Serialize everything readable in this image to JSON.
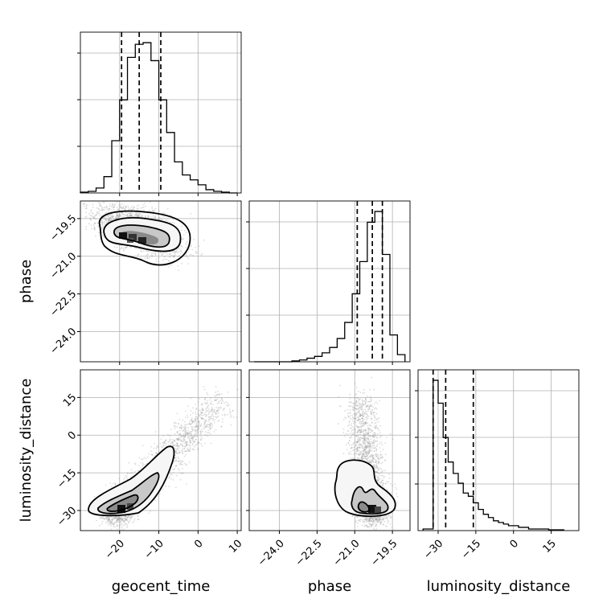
{
  "chart_data": {
    "type": "corner",
    "parameters": [
      "geocent_time",
      "phase",
      "luminosity_distance"
    ],
    "ranges": {
      "geocent_time": [
        -30,
        11
      ],
      "phase": [
        -25.2,
        -18.8
      ],
      "luminosity_distance": [
        -38,
        26
      ]
    },
    "ticks": {
      "geocent_time": [
        -20,
        -10,
        0,
        10
      ],
      "phase": [
        -24.0,
        -22.5,
        -21.0,
        -19.5
      ],
      "luminosity_distance": [
        -30,
        -15,
        0,
        15
      ]
    },
    "tick_labels": {
      "geocent_time": [
        "−20",
        "−10",
        "0",
        "10"
      ],
      "phase": [
        "−24.0",
        "−22.5",
        "−21.0",
        "−19.5"
      ],
      "luminosity_distance": [
        "−30",
        "−15",
        "0",
        "15"
      ]
    },
    "axis_labels": {
      "geocent_time": "geocent_time",
      "phase": "phase",
      "luminosity_distance": "luminosity_distance"
    },
    "quantiles": {
      "geocent_time": [
        -19.5,
        -15.0,
        -9.5
      ],
      "phase": [
        -20.9,
        -20.3,
        -19.9
      ],
      "luminosity_distance": [
        -32.0,
        -27.0,
        -16.0
      ]
    },
    "histograms": {
      "geocent_time": {
        "edges": [
          -30,
          -28,
          -26,
          -24,
          -22,
          -20,
          -18,
          -16,
          -14,
          -12,
          -10,
          -8,
          -6,
          -4,
          -2,
          0,
          2,
          4,
          6,
          8,
          10
        ],
        "counts": [
          0.5,
          1,
          3,
          10,
          32,
          57,
          83,
          91,
          92,
          81,
          57,
          37,
          19,
          11,
          8,
          5,
          2,
          1,
          0.5,
          0
        ]
      },
      "phase": {
        "edges": [
          -25.0,
          -24.7,
          -24.4,
          -24.1,
          -23.8,
          -23.5,
          -23.2,
          -22.9,
          -22.6,
          -22.3,
          -22.0,
          -21.7,
          -21.4,
          -21.1,
          -20.8,
          -20.5,
          -20.2,
          -19.9,
          -19.6,
          -19.3,
          -19.0
        ],
        "counts": [
          0,
          0,
          0,
          0,
          0,
          0.5,
          1,
          2,
          3,
          5,
          8,
          13,
          22,
          38,
          56,
          78,
          84,
          60,
          15,
          4
        ]
      },
      "luminosity_distance": {
        "edges": [
          -36,
          -34,
          -32,
          -30,
          -28,
          -26,
          -24,
          -22,
          -20,
          -18,
          -16,
          -14,
          -12,
          -10,
          -8,
          -6,
          -4,
          -2,
          0,
          2,
          4,
          6,
          8,
          10,
          12,
          14,
          16,
          18,
          20
        ],
        "counts": [
          1,
          1,
          92,
          78,
          57,
          42,
          35,
          29,
          23,
          21,
          17,
          13,
          10,
          8,
          6,
          5,
          4,
          3,
          3,
          2,
          2,
          1,
          1,
          1,
          1,
          0.5,
          0.5,
          0.5
        ]
      }
    },
    "correlations": {
      "phase_vs_geocent_time": {
        "x_mode": -15,
        "y_mode": -20.1
      },
      "luminosity_distance_vs_geocent_time": {
        "x_mode": -18,
        "y_mode": -31
      },
      "luminosity_distance_vs_phase": {
        "x_mode": -20.3,
        "y_mode": -31
      }
    },
    "grid": true
  }
}
